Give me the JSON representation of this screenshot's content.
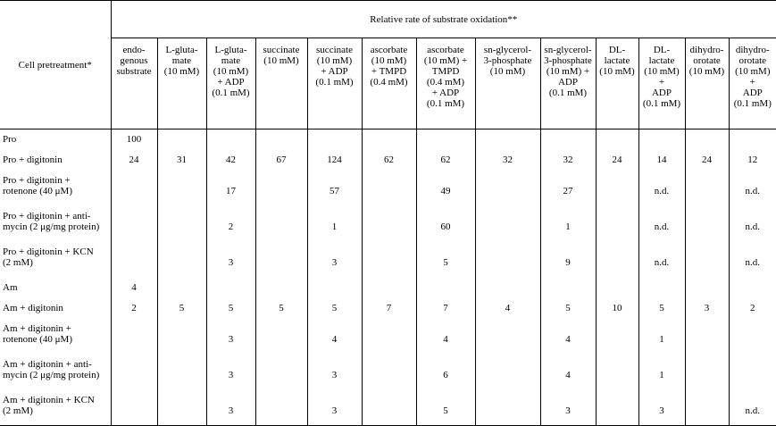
{
  "header": {
    "row_label": "Cell pretreatment*",
    "group_label": "Relative rate of substrate oxidation**",
    "columns": [
      [
        "endo-",
        "genous",
        "substrate"
      ],
      [
        "L-gluta-",
        "mate",
        "(10 mM)"
      ],
      [
        "L-gluta-",
        "mate",
        "(10 mM)",
        "+ ADP",
        "(0.1 mM)"
      ],
      [
        "succinate",
        "(10 mM)"
      ],
      [
        "succinate",
        "(10 mM)",
        "+ ADP",
        "(0.1 mM)"
      ],
      [
        "ascorbate",
        "(10 mM)",
        "+ TMPD",
        "(0.4 mM)"
      ],
      [
        "ascorbate",
        "(10 mM) +",
        "TMPD",
        "(0.4 mM)",
        "+ ADP",
        "(0.1 mM)"
      ],
      [
        "sn-glycerol-",
        "3-phosphate",
        "(10 mM)"
      ],
      [
        "sn-glycerol-",
        "3-phosphate",
        "(10 mM) +",
        "ADP",
        "(0.1 mM)"
      ],
      [
        "DL-",
        "lactate",
        "(10 mM)"
      ],
      [
        "DL-",
        "lactate",
        "(10 mM)",
        "+",
        "ADP",
        "(0.1 mM)"
      ],
      [
        "dihydro-",
        "orotate",
        "(10 mM)"
      ],
      [
        "dihydro-",
        "orotate",
        "(10 mM)",
        "+",
        "ADP",
        "(0.1 mM)"
      ]
    ]
  },
  "rows": [
    {
      "label": [
        "Pro"
      ],
      "values": [
        "100",
        "",
        "",
        "",
        "",
        "",
        "",
        "",
        "",
        "",
        "",
        "",
        ""
      ]
    },
    {
      "label": [
        "Pro + digitonin"
      ],
      "values": [
        "24",
        "31",
        "42",
        "67",
        "124",
        "62",
        "62",
        "32",
        "32",
        "24",
        "14",
        "24",
        "12"
      ]
    },
    {
      "label": [
        "Pro + digitonin +",
        "rotenone (40 μM)"
      ],
      "values": [
        "",
        "",
        "17",
        "",
        "57",
        "",
        "49",
        "",
        "27",
        "",
        "n.d.",
        "",
        "n.d."
      ]
    },
    {
      "label": [
        "Pro + digitonin + anti-",
        "mycin (2 μg/mg protein)"
      ],
      "values": [
        "",
        "",
        "2",
        "",
        "1",
        "",
        "60",
        "",
        "1",
        "",
        "n.d.",
        "",
        "n.d."
      ]
    },
    {
      "label": [
        "Pro + digitonin + KCN",
        "(2 mM)"
      ],
      "values": [
        "",
        "",
        "3",
        "",
        "3",
        "",
        "5",
        "",
        "9",
        "",
        "n.d.",
        "",
        "n.d."
      ]
    },
    {
      "label": [
        "Am"
      ],
      "values": [
        "4",
        "",
        "",
        "",
        "",
        "",
        "",
        "",
        "",
        "",
        "",
        "",
        ""
      ]
    },
    {
      "label": [
        "Am + digitonin"
      ],
      "values": [
        "2",
        "5",
        "5",
        "5",
        "5",
        "7",
        "7",
        "4",
        "5",
        "10",
        "5",
        "3",
        "2"
      ]
    },
    {
      "label": [
        "Am + digitonin +",
        "rotenone (40 μM)"
      ],
      "values": [
        "",
        "",
        "3",
        "",
        "4",
        "",
        "4",
        "",
        "4",
        "",
        "1",
        "",
        ""
      ]
    },
    {
      "label": [
        "Am + digitonin + anti-",
        "mycin (2 μg/mg protein)"
      ],
      "values": [
        "",
        "",
        "3",
        "",
        "3",
        "",
        "6",
        "",
        "4",
        "",
        "1",
        "",
        ""
      ]
    },
    {
      "label": [
        "Am + digitonin + KCN",
        "(2 mM)"
      ],
      "values": [
        "",
        "",
        "3",
        "",
        "3",
        "",
        "5",
        "",
        "3",
        "",
        "3",
        "",
        "n.d."
      ]
    }
  ]
}
